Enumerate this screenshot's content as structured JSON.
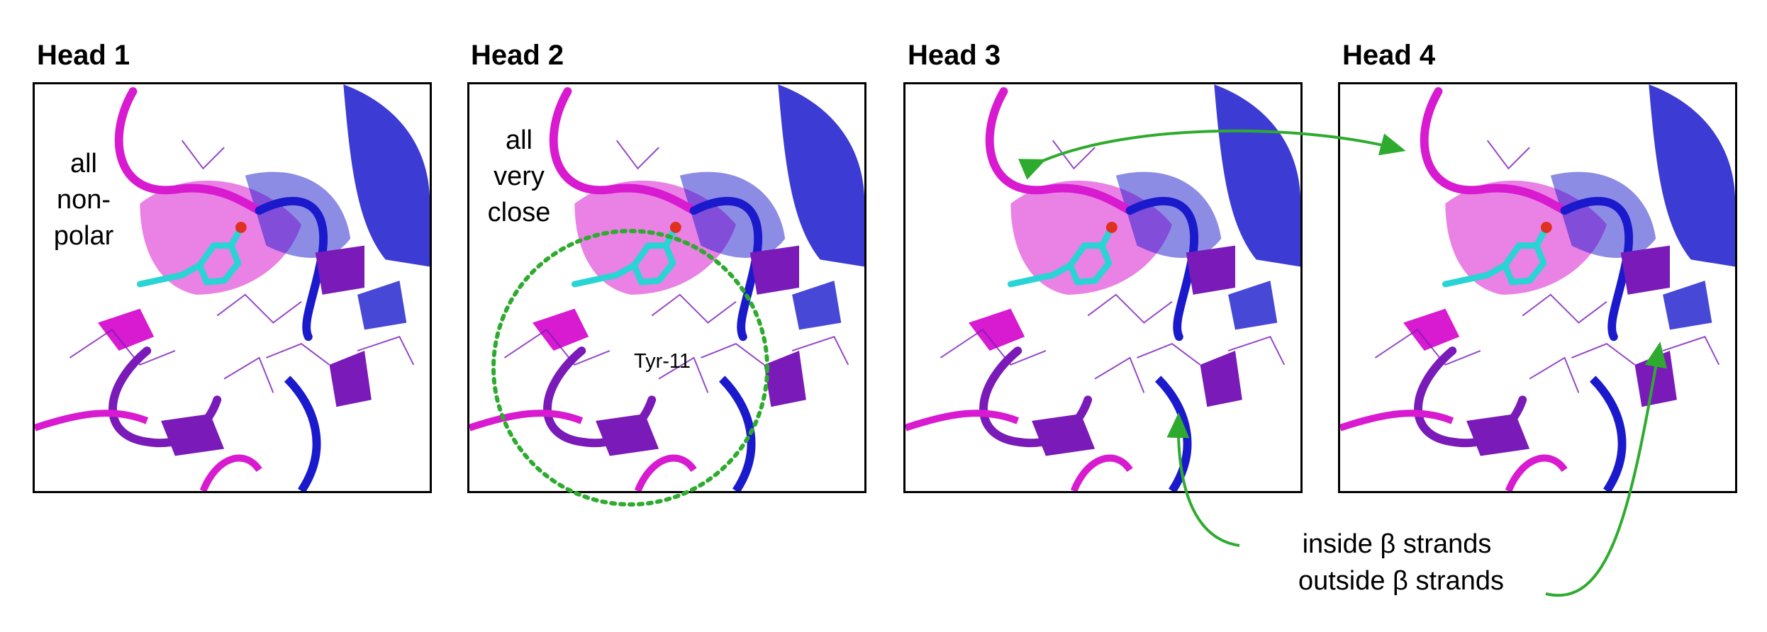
{
  "panels": [
    {
      "title": "Head 1"
    },
    {
      "title": "Head 2"
    },
    {
      "title": "Head 3"
    },
    {
      "title": "Head 4"
    }
  ],
  "annotations": {
    "head1_note_lines": [
      "all",
      "non-",
      "polar"
    ],
    "head2_note_lines": [
      "all",
      "very",
      "close"
    ],
    "residue_label": "Tyr-11",
    "inside_label": "inside β strands",
    "outside_label": "outside β strands"
  },
  "colors": {
    "blue": "#1a1acc",
    "magenta": "#d81ad0",
    "purple": "#7a1ab8",
    "cyan": "#2ad4d4",
    "oxygen": "#e03020",
    "annotation_green": "#2eab2e"
  }
}
